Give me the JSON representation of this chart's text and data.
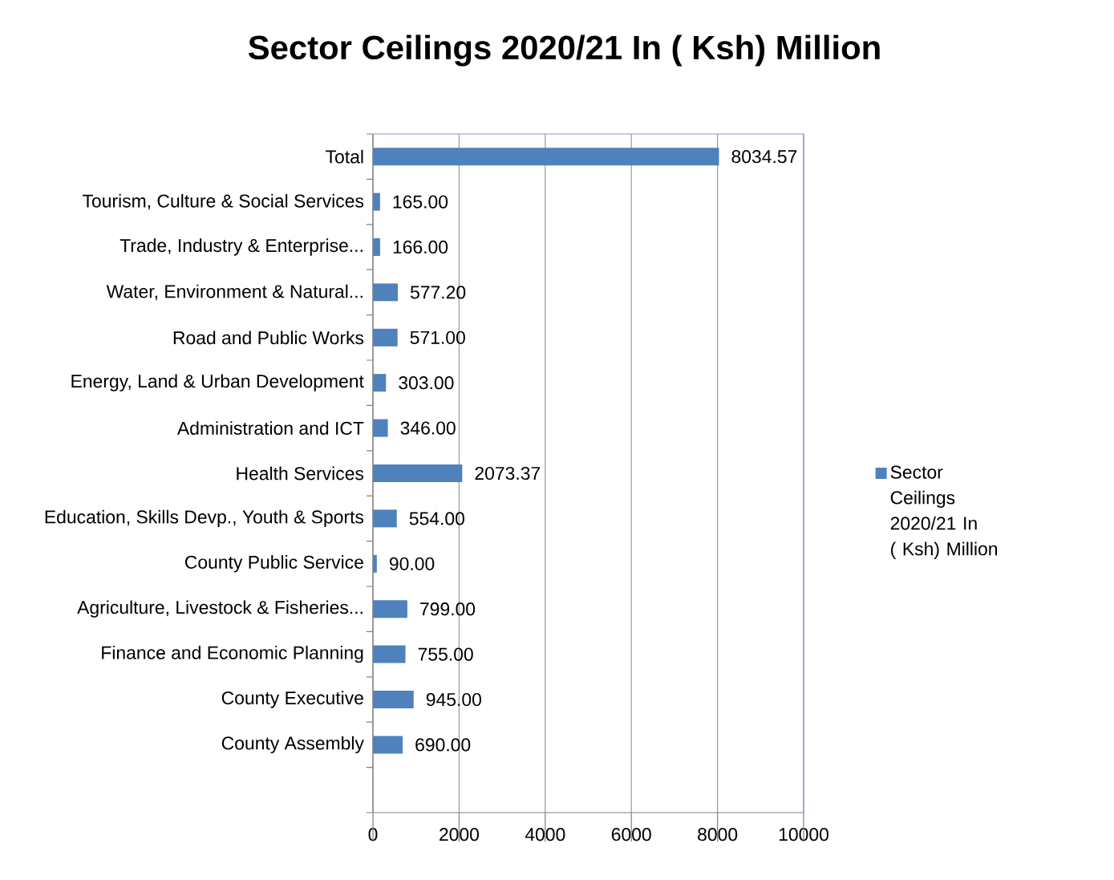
{
  "chart_data": {
    "type": "bar",
    "orientation": "horizontal",
    "title": "Sector Ceilings 2020/21 In ( Ksh) Million",
    "categories": [
      "Total",
      "Tourism, Culture & Social Services",
      "Trade, Industry & Enterprise...",
      "Water, Environment & Natural...",
      "Road and Public Works",
      "Energy, Land & Urban Development",
      "Administration and ICT",
      "Health Services",
      "Education, Skills Devp., Youth & Sports",
      "County Public Service",
      "Agriculture, Livestock & Fisheries...",
      "Finance and Economic Planning",
      "County Executive",
      "County Assembly",
      null
    ],
    "series": [
      {
        "name": "Sector Ceilings 2020/21 In ( Ksh) Million",
        "color": "#4f81bd",
        "values": [
          8034.57,
          165.0,
          166.0,
          577.2,
          571.0,
          303.0,
          346.0,
          2073.37,
          554.0,
          90.0,
          799.0,
          755.0,
          945.0,
          690.0,
          null
        ],
        "value_labels": [
          "8034.57",
          "165.00",
          "166.00",
          "577.20",
          "571.00",
          "303.00",
          "346.00",
          "2073.37",
          "554.00",
          "90.00",
          "799.00",
          "755.00",
          "945.00",
          "690.00",
          null
        ]
      }
    ],
    "xlim": [
      0,
      10000
    ],
    "xticks": [
      0,
      2000,
      4000,
      6000,
      8000,
      10000
    ],
    "grid": "x",
    "legend": "right"
  }
}
